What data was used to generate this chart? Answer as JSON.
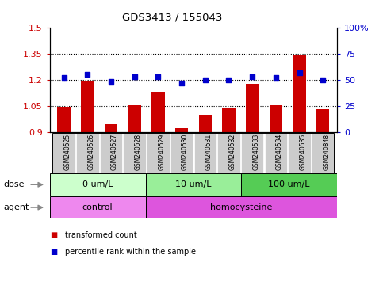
{
  "title": "GDS3413 / 155043",
  "samples": [
    "GSM240525",
    "GSM240526",
    "GSM240527",
    "GSM240528",
    "GSM240529",
    "GSM240530",
    "GSM240531",
    "GSM240532",
    "GSM240533",
    "GSM240534",
    "GSM240535",
    "GSM240848"
  ],
  "transformed_count": [
    1.045,
    1.195,
    0.945,
    1.055,
    1.13,
    0.925,
    1.0,
    1.035,
    1.175,
    1.055,
    1.34,
    1.03
  ],
  "percentile_rank": [
    52,
    55,
    48,
    53,
    53,
    47,
    50,
    50,
    53,
    52,
    57,
    50
  ],
  "bar_color": "#cc0000",
  "dot_color": "#0000cc",
  "ylim_left": [
    0.9,
    1.5
  ],
  "ylim_right": [
    0,
    100
  ],
  "yticks_left": [
    0.9,
    1.05,
    1.2,
    1.35,
    1.5
  ],
  "yticks_right": [
    0,
    25,
    50,
    75,
    100
  ],
  "ytick_labels_left": [
    "0.9",
    "1.05",
    "1.2",
    "1.35",
    "1.5"
  ],
  "ytick_labels_right": [
    "0",
    "25",
    "50",
    "75",
    "100%"
  ],
  "hlines": [
    1.05,
    1.2,
    1.35
  ],
  "dose_groups": [
    {
      "label": "0 um/L",
      "start": 0,
      "end": 4,
      "color": "#ccffcc"
    },
    {
      "label": "10 um/L",
      "start": 4,
      "end": 8,
      "color": "#99ee99"
    },
    {
      "label": "100 um/L",
      "start": 8,
      "end": 12,
      "color": "#55cc55"
    }
  ],
  "agent_groups": [
    {
      "label": "control",
      "start": 0,
      "end": 4,
      "color": "#ee88ee"
    },
    {
      "label": "homocysteine",
      "start": 4,
      "end": 12,
      "color": "#dd55dd"
    }
  ],
  "dose_label": "dose",
  "agent_label": "agent",
  "legend_bar_label": "transformed count",
  "legend_dot_label": "percentile rank within the sample",
  "sample_box_color": "#cccccc",
  "base_value": 0.9
}
